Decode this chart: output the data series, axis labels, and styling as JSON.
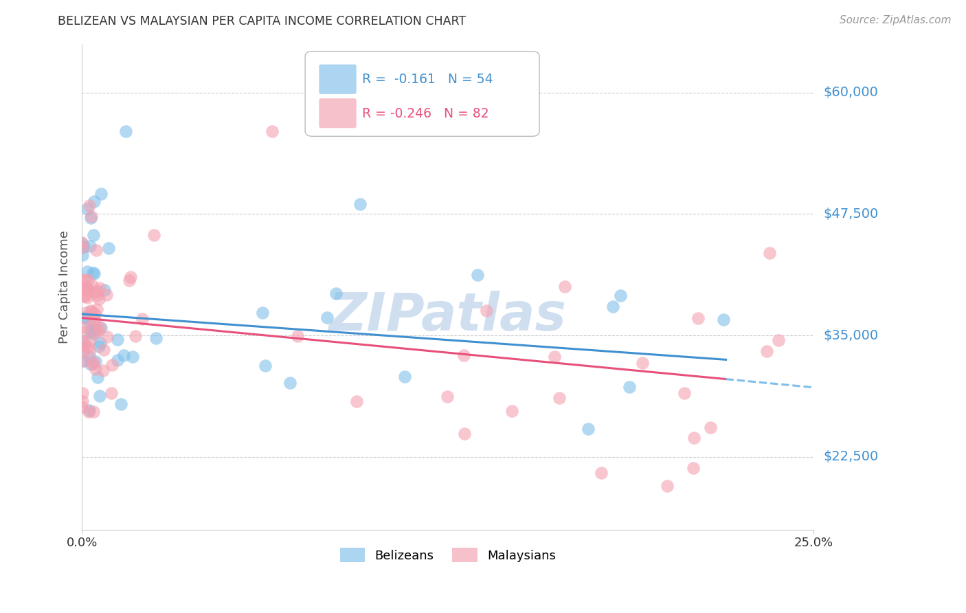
{
  "title": "BELIZEAN VS MALAYSIAN PER CAPITA INCOME CORRELATION CHART",
  "source": "Source: ZipAtlas.com",
  "ylabel": "Per Capita Income",
  "yticks": [
    22500,
    35000,
    47500,
    60000
  ],
  "ytick_labels": [
    "$22,500",
    "$35,000",
    "$47,500",
    "$60,000"
  ],
  "xmin": 0.0,
  "xmax": 0.25,
  "ymin": 15000,
  "ymax": 65000,
  "legend_blue_r": "-0.161",
  "legend_blue_n": "54",
  "legend_pink_r": "-0.246",
  "legend_pink_n": "82",
  "blue_color": "#7fbfea",
  "pink_color": "#f4a0b0",
  "blue_line_color": "#4090d0",
  "pink_line_color": "#e8507a",
  "dashed_line_color": "#7fbfea",
  "watermark_color": "#d0dff0",
  "grid_color": "#cccccc",
  "title_color": "#333333",
  "source_color": "#999999",
  "ytick_color": "#4090d0"
}
